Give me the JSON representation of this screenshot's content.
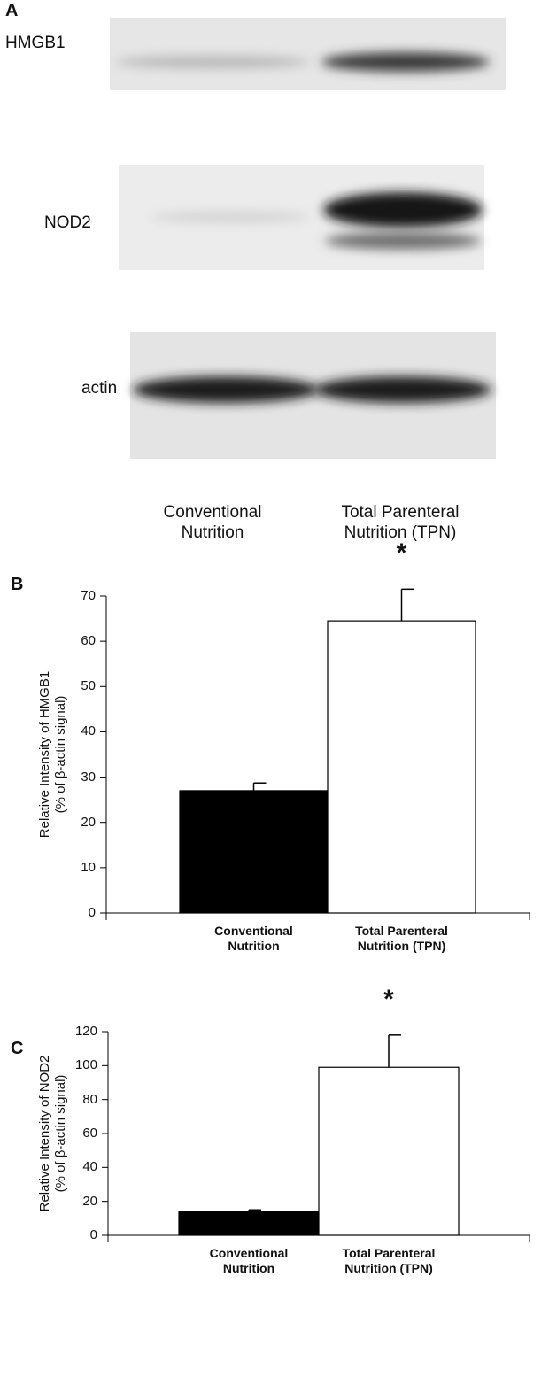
{
  "panel_a": {
    "label": "A",
    "blots": [
      "HMGB1",
      "NOD2",
      "actin"
    ],
    "lanes": [
      "Conventional\nNutrition",
      "Total Parenteral\nNutrition (TPN)"
    ]
  },
  "chart_data": [
    {
      "type": "bar",
      "label": "B",
      "ylabel": "Relative Intensity of HMGB1\n(% of β-actin signal)",
      "categories": [
        "Conventional\nNutrition",
        "Total Parenteral\nNutrition (TPN)"
      ],
      "values": [
        27,
        64.5
      ],
      "errors": [
        1.7,
        7
      ],
      "colors": [
        "#000000",
        "#ffffff"
      ],
      "ylim": [
        0,
        70
      ],
      "yticks": [
        0,
        10,
        20,
        30,
        40,
        50,
        60,
        70
      ],
      "annotation": "*"
    },
    {
      "type": "bar",
      "label": "C",
      "ylabel": "Relative Intensity of NOD2\n(% of β-actin signal)",
      "categories": [
        "Conventional\nNutrition",
        "Total Parenteral\nNutrition (TPN)"
      ],
      "values": [
        14,
        99
      ],
      "errors": [
        1,
        19
      ],
      "colors": [
        "#000000",
        "#ffffff"
      ],
      "ylim": [
        0,
        120
      ],
      "yticks": [
        0,
        20,
        40,
        60,
        80,
        100,
        120
      ],
      "annotation": "*"
    }
  ]
}
